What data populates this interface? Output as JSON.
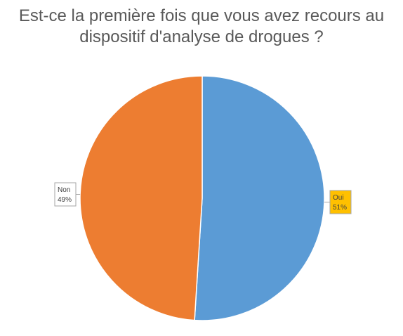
{
  "title_line1": "Est-ce la première fois que vous avez recours au",
  "title_line2": "dispositif d'analyse de drogues ?",
  "chart_data": {
    "type": "pie",
    "title": "Est-ce la première fois que vous avez recours au dispositif d'analyse de drogues ?",
    "categories": [
      "Oui",
      "Non"
    ],
    "values": [
      51,
      49
    ],
    "labels": [
      "51%",
      "49%"
    ],
    "colors": [
      "#5B9BD5",
      "#ED7D31"
    ],
    "data_label_fills": [
      "#FFC000",
      "#FFFFFF"
    ],
    "start_angle": "top, clockwise",
    "legend": "none (data labels beside slices)"
  }
}
